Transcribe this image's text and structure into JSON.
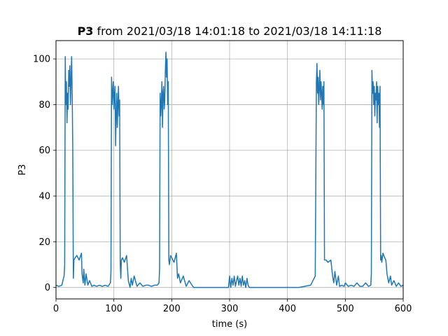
{
  "chart_data": {
    "type": "line",
    "title_bold": "P3",
    "title_rest": " from 2021/03/18 14:01:18 to 2021/03/18 14:11:18",
    "xlabel": "time (s)",
    "ylabel": "P3",
    "xlim": [
      0,
      600
    ],
    "ylim": [
      -5,
      108
    ],
    "xticks": [
      0,
      100,
      200,
      300,
      400,
      500,
      600
    ],
    "yticks": [
      0,
      20,
      40,
      60,
      80,
      100
    ],
    "grid": true,
    "line_color": "#1f77b4",
    "series": [
      {
        "x": [
          0,
          5,
          10,
          14,
          15,
          16,
          17,
          18,
          19,
          20,
          21,
          22,
          23,
          24,
          25,
          26,
          27,
          28,
          29,
          30,
          31,
          33,
          36,
          40,
          44,
          45,
          47,
          48,
          50,
          52,
          55,
          58,
          62,
          66,
          70,
          75,
          80,
          85,
          90,
          94,
          95,
          96,
          97,
          98,
          99,
          100,
          101,
          102,
          103,
          104,
          105,
          106,
          107,
          108,
          109,
          110,
          111,
          112,
          113,
          115,
          118,
          122,
          125,
          128,
          130,
          132,
          135,
          140,
          145,
          150,
          155,
          160,
          165,
          170,
          175,
          178,
          179,
          180,
          181,
          182,
          183,
          184,
          185,
          186,
          187,
          188,
          189,
          190,
          191,
          192,
          193,
          194,
          195,
          196,
          198,
          200,
          204,
          208,
          210,
          212,
          215,
          220,
          225,
          230,
          235,
          238,
          240,
          245,
          260,
          280,
          298,
          300,
          302,
          304,
          306,
          308,
          310,
          312,
          314,
          316,
          318,
          320,
          322,
          324,
          326,
          328,
          330,
          332,
          334,
          336,
          340,
          360,
          380,
          400,
          420,
          440,
          448,
          450,
          451,
          452,
          453,
          454,
          455,
          456,
          457,
          458,
          459,
          460,
          461,
          462,
          463,
          464,
          465,
          466,
          467,
          470,
          475,
          478,
          480,
          482,
          485,
          488,
          490,
          494,
          498,
          500,
          505,
          510,
          515,
          520,
          525,
          530,
          535,
          540,
          544,
          545,
          546,
          547,
          548,
          549,
          550,
          551,
          552,
          553,
          554,
          555,
          556,
          557,
          558,
          559,
          560,
          561,
          562,
          563,
          565,
          568,
          570,
          572,
          575,
          578,
          580,
          584,
          588,
          592,
          596,
          600
        ],
        "y": [
          1,
          0.5,
          1,
          5,
          10,
          101,
          80,
          90,
          72,
          85,
          78,
          95,
          88,
          97,
          80,
          90,
          101,
          85,
          60,
          4,
          12,
          13,
          14,
          12,
          15,
          6,
          2,
          8,
          1,
          6,
          1,
          3,
          0.5,
          1,
          0.5,
          1,
          0.5,
          1,
          0.5,
          2,
          7,
          92,
          80,
          85,
          90,
          78,
          84,
          88,
          62,
          75,
          85,
          70,
          80,
          88,
          75,
          82,
          10,
          4,
          12,
          13,
          11,
          14,
          3,
          0,
          4,
          1,
          5,
          0.5,
          2,
          0.5,
          1,
          1,
          0.5,
          1,
          1,
          2,
          8,
          85,
          75,
          80,
          90,
          70,
          85,
          88,
          78,
          82,
          95,
          103,
          92,
          100,
          80,
          90,
          12,
          10,
          14,
          13,
          11,
          15,
          4,
          6,
          2,
          5,
          0.5,
          3,
          1,
          0,
          0,
          0,
          0,
          0,
          0,
          5,
          0,
          4,
          1,
          5,
          0.5,
          3,
          5,
          1,
          4,
          0.5,
          5,
          1,
          3,
          0,
          4,
          1,
          0,
          0,
          0,
          0,
          0,
          0,
          0,
          1,
          5,
          90,
          98,
          85,
          92,
          80,
          88,
          95,
          82,
          90,
          85,
          78,
          88,
          80,
          90,
          12,
          12,
          12,
          12,
          11,
          12,
          5,
          2,
          7,
          1,
          5,
          0.5,
          1,
          0.5,
          2,
          0.5,
          1,
          0.5,
          2,
          0.5,
          0.5,
          2,
          0.5,
          1,
          6,
          95,
          85,
          90,
          80,
          88,
          75,
          85,
          82,
          90,
          72,
          88,
          80,
          85,
          70,
          88,
          12,
          14,
          11,
          15,
          13,
          12,
          6,
          2,
          5,
          1,
          3,
          0.5,
          2,
          0.5,
          1
        ]
      }
    ]
  }
}
